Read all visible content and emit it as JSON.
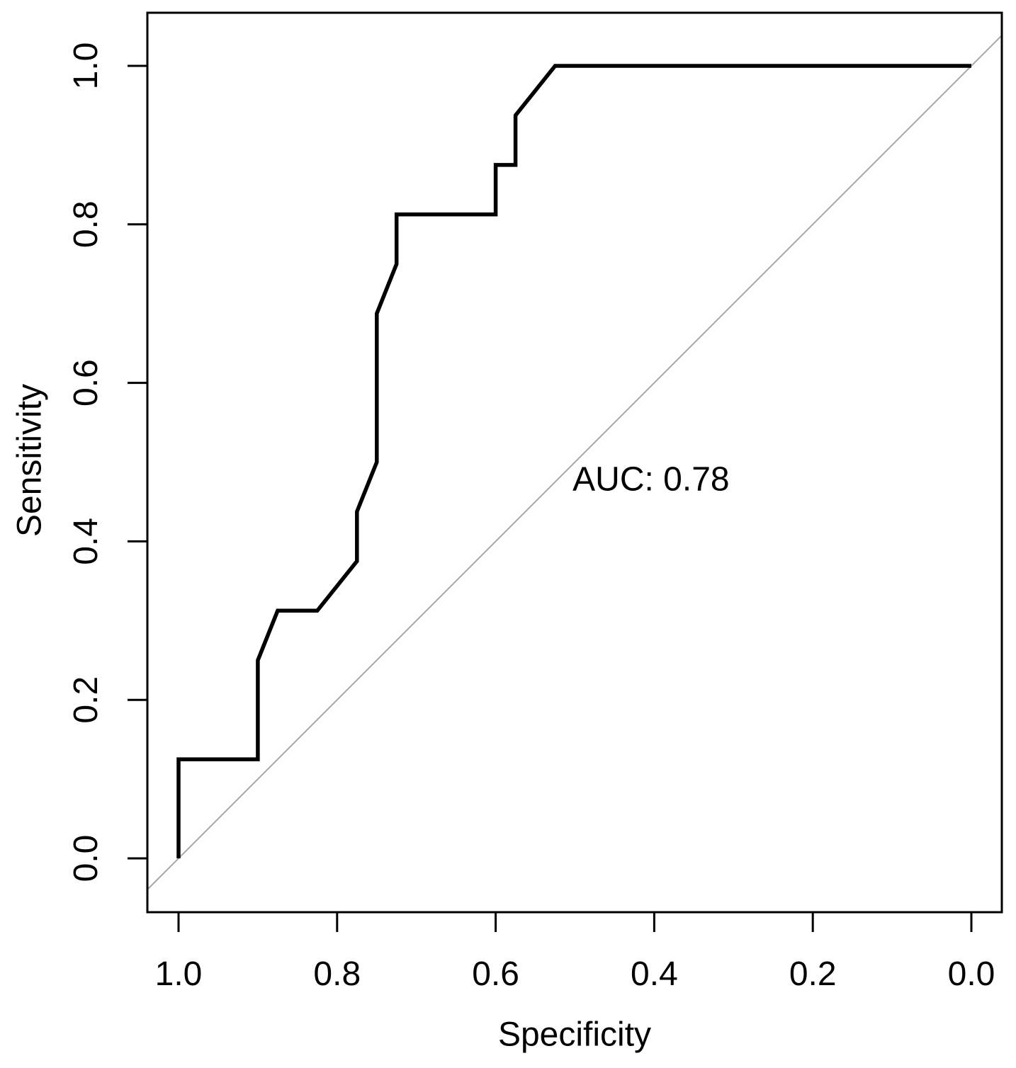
{
  "chart_data": {
    "type": "line",
    "title": "",
    "xlabel": "Specificity",
    "ylabel": "Sensitivity",
    "x_axis_reversed": true,
    "xlim": [
      1.0,
      0.0
    ],
    "ylim": [
      0.0,
      1.0
    ],
    "grid": false,
    "legend": "none",
    "x_ticks": [
      {
        "label": "1.0",
        "value": 1.0
      },
      {
        "label": "0.8",
        "value": 0.8
      },
      {
        "label": "0.6",
        "value": 0.6
      },
      {
        "label": "0.4",
        "value": 0.4
      },
      {
        "label": "0.2",
        "value": 0.2
      },
      {
        "label": "0.0",
        "value": 0.0
      }
    ],
    "y_ticks": [
      {
        "label": "0.0",
        "value": 0.0
      },
      {
        "label": "0.2",
        "value": 0.2
      },
      {
        "label": "0.4",
        "value": 0.4
      },
      {
        "label": "0.6",
        "value": 0.6
      },
      {
        "label": "0.8",
        "value": 0.8
      },
      {
        "label": "1.0",
        "value": 1.0
      }
    ],
    "series": [
      {
        "name": "ROC curve",
        "color": "#000000",
        "stroke_width": 5.5,
        "points_format": "[specificity, sensitivity]",
        "points": [
          [
            1.0,
            0.0
          ],
          [
            1.0,
            0.125
          ],
          [
            0.9,
            0.125
          ],
          [
            0.9,
            0.25
          ],
          [
            0.875,
            0.3125
          ],
          [
            0.825,
            0.3125
          ],
          [
            0.775,
            0.375
          ],
          [
            0.775,
            0.4375
          ],
          [
            0.75,
            0.5
          ],
          [
            0.75,
            0.6875
          ],
          [
            0.725,
            0.75
          ],
          [
            0.725,
            0.8125
          ],
          [
            0.6,
            0.8125
          ],
          [
            0.6,
            0.875
          ],
          [
            0.575,
            0.875
          ],
          [
            0.575,
            0.9375
          ],
          [
            0.525,
            1.0
          ],
          [
            0.0,
            1.0
          ]
        ]
      }
    ],
    "reference_line": {
      "name": "chance diagonal",
      "color": "#a6a6a6",
      "stroke_width": 2,
      "from": [
        1.0,
        0.0
      ],
      "to": [
        0.0,
        1.0
      ]
    },
    "annotation": {
      "text": "AUC: 0.78",
      "x_spec": 0.503,
      "y_sens": 0.478,
      "color": "#000000"
    },
    "colors": {
      "background": "#ffffff",
      "axis": "#000000",
      "text": "#000000"
    }
  }
}
